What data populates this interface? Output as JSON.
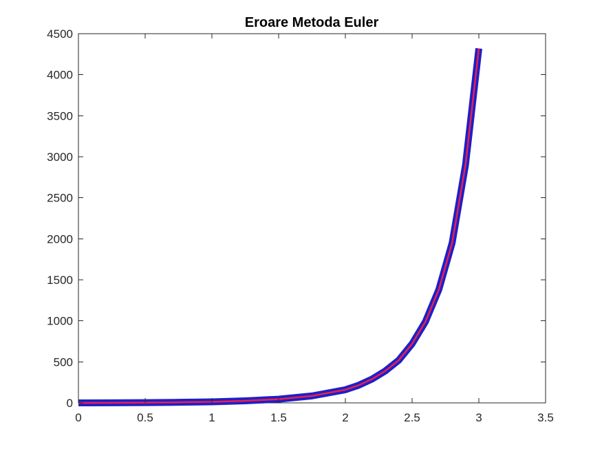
{
  "chart_data": {
    "type": "line",
    "title": "Eroare Metoda Euler",
    "xlabel": "",
    "ylabel": "",
    "xlim": [
      0,
      3.5
    ],
    "ylim": [
      0,
      4500
    ],
    "x_ticks": [
      0,
      0.5,
      1,
      1.5,
      2,
      2.5,
      3,
      3.5
    ],
    "x_tick_labels": [
      "0",
      "0.5",
      "1",
      "1.5",
      "2",
      "2.5",
      "3",
      "3.5"
    ],
    "y_ticks": [
      0,
      500,
      1000,
      1500,
      2000,
      2500,
      3000,
      3500,
      4000,
      4500
    ],
    "y_tick_labels": [
      "0",
      "500",
      "1000",
      "1500",
      "2000",
      "2500",
      "3000",
      "3500",
      "4000",
      "4500"
    ],
    "grid": false,
    "legend": "none",
    "series": [
      {
        "color": "#1f1fc8",
        "inner_color": "#e8214a",
        "x": [
          0,
          0.25,
          0.5,
          0.75,
          1,
          1.25,
          1.5,
          1.75,
          2,
          2.1,
          2.2,
          2.3,
          2.4,
          2.5,
          2.6,
          2.7,
          2.8,
          2.9,
          3
        ],
        "y": [
          0,
          1,
          3,
          7,
          13,
          25,
          45,
          85,
          160,
          215,
          290,
          390,
          520,
          720,
          990,
          1380,
          1950,
          2900,
          4320
        ]
      }
    ]
  }
}
